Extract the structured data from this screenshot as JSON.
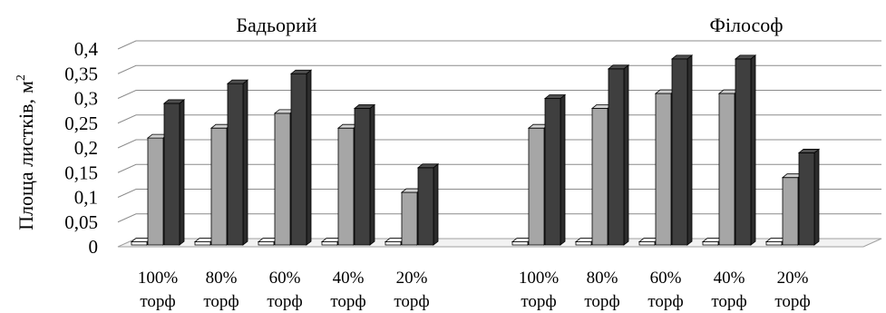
{
  "chart_data": {
    "type": "bar",
    "ylabel": "Площа листків,",
    "ylabel_unit_base": "м",
    "ylabel_unit_sup": "2",
    "ylim": [
      0,
      0.4
    ],
    "yticks": [
      "0",
      "0,05",
      "0,1",
      "0,15",
      "0,2",
      "0,25",
      "0,3",
      "0,35",
      "0,4"
    ],
    "grid": true,
    "legend": "none",
    "groups": [
      {
        "title": "Бадьорий",
        "categories": [
          {
            "line1": "100%",
            "line2": "торф"
          },
          {
            "line1": "80%",
            "line2": "торф"
          },
          {
            "line1": "60%",
            "line2": "торф"
          },
          {
            "line1": "40%",
            "line2": "торф"
          },
          {
            "line1": "20%",
            "line2": "торф"
          }
        ],
        "series": [
          {
            "color": "#ffffff",
            "values": [
              0.01,
              0.01,
              0.01,
              0.01,
              0.01
            ]
          },
          {
            "color": "#a6a6a6",
            "values": [
              0.22,
              0.24,
              0.27,
              0.24,
              0.11
            ]
          },
          {
            "color": "#3f3f3f",
            "values": [
              0.29,
              0.33,
              0.35,
              0.28,
              0.16
            ]
          }
        ]
      },
      {
        "title": "Філософ",
        "categories": [
          {
            "line1": "100%",
            "line2": "торф"
          },
          {
            "line1": "80%",
            "line2": "торф"
          },
          {
            "line1": "60%",
            "line2": "торф"
          },
          {
            "line1": "40%",
            "line2": "торф"
          },
          {
            "line1": "20%",
            "line2": "торф"
          }
        ],
        "series": [
          {
            "color": "#ffffff",
            "values": [
              0.01,
              0.01,
              0.01,
              0.01,
              0.01
            ]
          },
          {
            "color": "#a6a6a6",
            "values": [
              0.24,
              0.28,
              0.31,
              0.31,
              0.14
            ]
          },
          {
            "color": "#3f3f3f",
            "values": [
              0.3,
              0.36,
              0.38,
              0.38,
              0.19
            ]
          }
        ]
      }
    ]
  }
}
